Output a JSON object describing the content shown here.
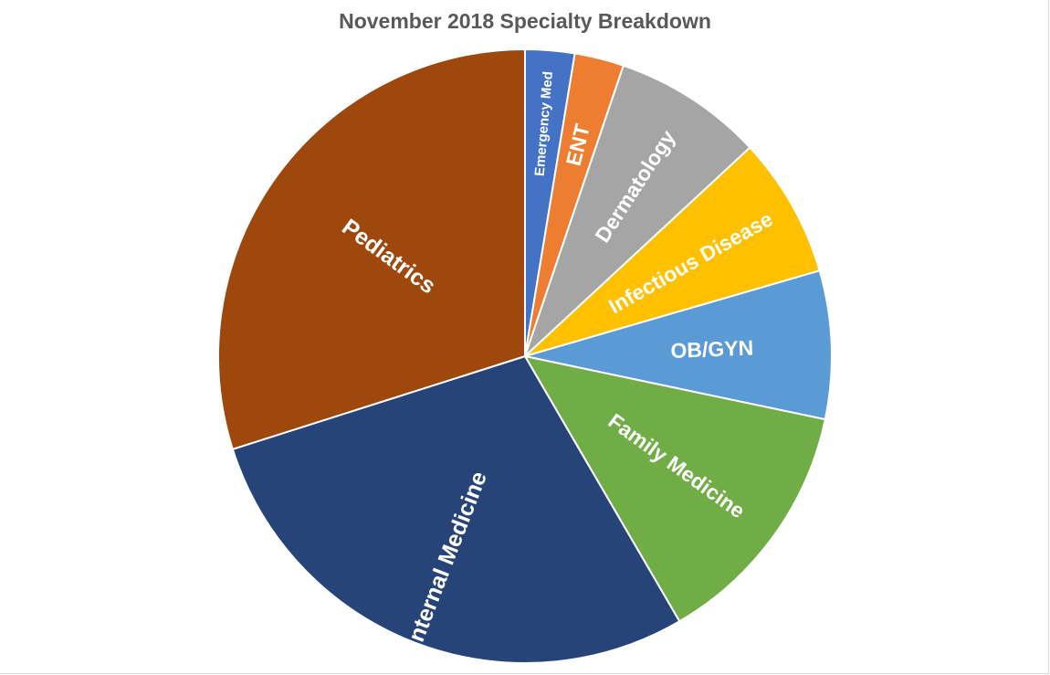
{
  "chart_data": {
    "type": "pie",
    "title": "November 2018 Specialty Breakdown",
    "start_angle_deg": 0,
    "direction": "clockwise",
    "legend": "none",
    "slices": [
      {
        "label": "Emergency Med",
        "value": 2.6,
        "color": "#4472C4"
      },
      {
        "label": "ENT",
        "value": 2.6,
        "color": "#ED7D31"
      },
      {
        "label": "Dermatology",
        "value": 7.9,
        "color": "#A5A5A5"
      },
      {
        "label": "Infectious Disease",
        "value": 7.4,
        "color": "#FFC000"
      },
      {
        "label": "OB/GYN",
        "value": 7.8,
        "color": "#5B9BD5"
      },
      {
        "label": "Family Medicine",
        "value": 13.3,
        "color": "#70AD47"
      },
      {
        "label": "Internal Medicine",
        "value": 28.5,
        "color": "#264478"
      },
      {
        "label": "Pediatrics",
        "value": 29.9,
        "color": "#9E480E"
      }
    ]
  }
}
